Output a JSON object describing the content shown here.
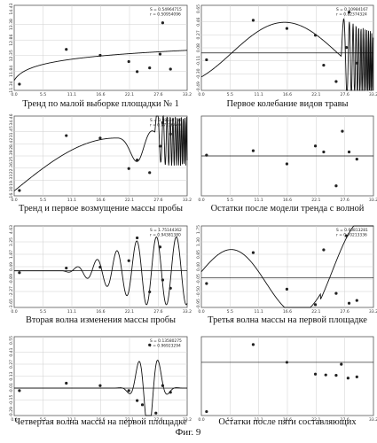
{
  "figure_label": "Фиг. 9",
  "chart_data": [
    {
      "type": "scatter",
      "caption": "Тренд по малой выборке площадки № 1",
      "stat_S": "S = 0.54964715",
      "stat_r": "r = 0.50954096",
      "x_ticks": [
        "0.0",
        "5.5",
        "11.1",
        "16.6",
        "22.1",
        "27.6",
        "33.2"
      ],
      "y_ticks": [
        "14.43",
        "13.38",
        "12.86",
        "12.35",
        "11.84",
        "11.34"
      ],
      "ylim": [
        11.2,
        14.6
      ],
      "points": [
        [
          1.0,
          11.45
        ],
        [
          10.0,
          12.84
        ],
        [
          16.5,
          12.6
        ],
        [
          22.0,
          12.35
        ],
        [
          23.6,
          11.95
        ],
        [
          26.0,
          12.1
        ],
        [
          28.0,
          12.65
        ],
        [
          28.5,
          13.9
        ],
        [
          30.0,
          12.05
        ]
      ],
      "curve": {
        "kind": "log",
        "a": 11.6,
        "b": 0.34
      }
    },
    {
      "type": "scatter",
      "caption": "Первое колебание видов травы",
      "stat_S": "S = 0.10984167",
      "stat_r": "r = 0.82374324",
      "x_ticks": [
        "0.0",
        "5.5",
        "11.1",
        "16.6",
        "22.1",
        "27.6",
        "33.2"
      ],
      "y_ticks": [
        "0.65",
        "0.46",
        "0.27",
        "0.08",
        "-0.11",
        "-0.30",
        "-0.49"
      ],
      "ylim": [
        -0.55,
        0.7
      ],
      "baseline": 0.0,
      "points": [
        [
          1.0,
          -0.1
        ],
        [
          10.0,
          0.48
        ],
        [
          16.5,
          0.36
        ],
        [
          22.0,
          0.26
        ],
        [
          23.6,
          -0.18
        ],
        [
          26.0,
          -0.42
        ],
        [
          28.0,
          0.08
        ],
        [
          28.5,
          0.6
        ],
        [
          30.0,
          -0.15
        ]
      ],
      "curve": {
        "kind": "wave1"
      }
    },
    {
      "type": "scatter",
      "caption": "Тренд и первое возмущение массы пробы",
      "stat_S": "S = 3.98558737",
      "stat_r": "r = 0.87376440",
      "x_ticks": [
        "0.0",
        "5.5",
        "11.1",
        "16.6",
        "22.1",
        "27.6",
        "33.2"
      ],
      "y_ticks": [
        "34.46",
        "31.45",
        "28.42",
        "25.39",
        "22.36",
        "19.33",
        "16.30"
      ],
      "ylim": [
        15.8,
        35.4
      ],
      "points": [
        [
          1.0,
          17.1
        ],
        [
          10.0,
          30.6
        ],
        [
          16.5,
          30.0
        ],
        [
          22.0,
          22.5
        ],
        [
          23.6,
          24.6
        ],
        [
          26.0,
          21.5
        ],
        [
          28.0,
          28.0
        ],
        [
          28.5,
          33.8
        ],
        [
          30.0,
          31.0
        ]
      ],
      "curve": {
        "kind": "trendwave"
      }
    },
    {
      "type": "scatter",
      "caption": "Остатки после модели тренда с волной",
      "stat_S": "",
      "stat_r": "",
      "x_ticks": [
        "0.0",
        "5.5",
        "11.1",
        "16.6",
        "22.1",
        "27.6",
        "33.2"
      ],
      "y_ticks": [],
      "ylim": [
        -1.0,
        1.0
      ],
      "baseline": 0.0,
      "points": [
        [
          1.0,
          0.02
        ],
        [
          10.0,
          0.13
        ],
        [
          16.5,
          -0.2
        ],
        [
          22.0,
          0.25
        ],
        [
          23.6,
          0.1
        ],
        [
          26.0,
          -0.75
        ],
        [
          27.2,
          0.62
        ],
        [
          28.5,
          0.1
        ],
        [
          30.0,
          -0.08
        ]
      ],
      "curve": {
        "kind": "none"
      }
    },
    {
      "type": "scatter",
      "caption": "Вторая волна изменения массы пробы",
      "stat_S": "S = 1.75144362",
      "stat_r": "r = 0.94381380",
      "x_ticks": [
        "0.0",
        "5.5",
        "11.1",
        "16.6",
        "22.1",
        "27.6",
        "33.2"
      ],
      "y_ticks": [
        "4.63",
        "3.25",
        "1.87",
        "0.49",
        "-0.89",
        "-2.27",
        "-3.65"
      ],
      "ylim": [
        -4.0,
        4.9
      ],
      "baseline": 0.0,
      "points": [
        [
          1.0,
          -0.2
        ],
        [
          10.0,
          0.3
        ],
        [
          16.5,
          0.4
        ],
        [
          22.0,
          1.1
        ],
        [
          23.6,
          3.6
        ],
        [
          26.0,
          -2.3
        ],
        [
          28.0,
          2.6
        ],
        [
          28.5,
          -1.0
        ],
        [
          30.0,
          -1.9
        ]
      ],
      "curve": {
        "kind": "wave2"
      }
    },
    {
      "type": "scatter",
      "caption": "Третья волна массы на первой площадке",
      "stat_S": "S = 0.60813281",
      "stat_r": "r = 0.70213336",
      "x_ticks": [
        "0.0",
        "5.5",
        "11.1",
        "16.6",
        "22.1",
        "27.6",
        "33.2"
      ],
      "y_ticks": [
        "1.75",
        "1.30",
        "0.85",
        "0.40",
        "-0.05",
        "-0.50",
        "-0.95"
      ],
      "ylim": [
        -1.05,
        1.85
      ],
      "baseline": 0.0,
      "points": [
        [
          1.0,
          -0.2
        ],
        [
          10.0,
          0.9
        ],
        [
          16.5,
          -0.4
        ],
        [
          22.0,
          -0.95
        ],
        [
          23.6,
          1.0
        ],
        [
          26.0,
          -0.55
        ],
        [
          28.0,
          1.5
        ],
        [
          28.5,
          -0.9
        ],
        [
          30.0,
          -0.8
        ]
      ],
      "curve": {
        "kind": "wave3"
      }
    },
    {
      "type": "scatter",
      "caption": "Четвертая волна массы на первой площадке",
      "stat_S": "S = 0.13580275",
      "stat_r": "r = 0.96923294",
      "x_ticks": [
        "0.0",
        "5.5",
        "11.1",
        "16.6",
        "22.1",
        "27.6",
        "33.2"
      ],
      "y_ticks": [
        "0.55",
        "0.41",
        "0.27",
        "0.13",
        "-0.01",
        "-0.15",
        "-0.29"
      ],
      "ylim": [
        -0.33,
        0.62
      ],
      "baseline": 0.0,
      "points": [
        [
          1.0,
          -0.03
        ],
        [
          10.0,
          0.06
        ],
        [
          16.5,
          0.03
        ],
        [
          22.0,
          -0.03
        ],
        [
          23.6,
          -0.15
        ],
        [
          24.6,
          -0.2
        ],
        [
          26.0,
          0.52
        ],
        [
          27.2,
          -0.3
        ],
        [
          28.5,
          0.03
        ],
        [
          30.0,
          -0.05
        ]
      ],
      "curve": {
        "kind": "wave4"
      }
    },
    {
      "type": "scatter",
      "caption": "Остатки после пяти составляющих",
      "stat_S": "",
      "stat_r": "",
      "x_ticks": [
        "0.0",
        "5.5",
        "11.1",
        "16.6",
        "22.1",
        "27.6",
        "33.2"
      ],
      "y_ticks": [],
      "ylim": [
        -1.0,
        1.0
      ],
      "baseline": 0.35,
      "points": [
        [
          1.0,
          -0.9
        ],
        [
          10.0,
          0.8
        ],
        [
          16.5,
          0.35
        ],
        [
          22.0,
          0.05
        ],
        [
          24.0,
          0.03
        ],
        [
          26.0,
          0.02
        ],
        [
          27.0,
          0.3
        ],
        [
          28.3,
          -0.05
        ],
        [
          30.0,
          -0.02
        ]
      ],
      "curve": {
        "kind": "none"
      }
    }
  ]
}
